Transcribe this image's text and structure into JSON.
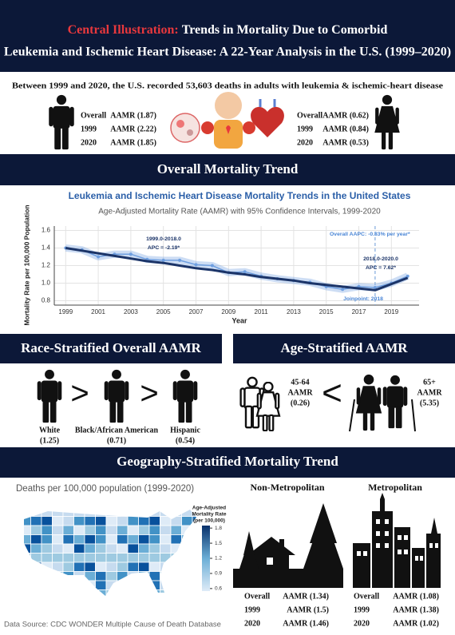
{
  "header": {
    "highlight": "Central Illustration:",
    "line1": "Trends in Mortality Due to Comorbid",
    "line2": "Leukemia and Ischemic Heart Disease: A 22-Year Analysis in the U.S. (1999–2020)"
  },
  "summary": {
    "text": "Between 1999 and 2020, the U.S. recorded 53,603 deaths in adults with leukemia & ischemic-heart disease",
    "male": [
      {
        "label": "Overall",
        "value": "AAMR (1.87)"
      },
      {
        "label": "1999",
        "value": "AAMR (2.22)"
      },
      {
        "label": "2020",
        "value": "AAMR (1.85)"
      }
    ],
    "female": [
      {
        "label": "Overall",
        "value": "AAMR (0.62)"
      },
      {
        "label": "1999",
        "value": "AAMR (0.84)"
      },
      {
        "label": "2020",
        "value": "AAMR (0.53)"
      }
    ]
  },
  "overall_heading": "Overall Mortality Trend",
  "chart_data": {
    "type": "line",
    "title": "Leukemia and Ischemic Heart Disease Mortality Trends in the United States",
    "subtitle": "Age-Adjusted Mortality Rate (AAMR) with 95% Confidence Intervals, 1999-2020",
    "x_label": "Year",
    "y_label": "Mortality Rate per 100,000 Population",
    "x": [
      1999,
      2000,
      2001,
      2002,
      2003,
      2004,
      2005,
      2006,
      2007,
      2008,
      2009,
      2010,
      2011,
      2012,
      2013,
      2014,
      2015,
      2016,
      2017,
      2018,
      2019,
      2020
    ],
    "series": [
      {
        "color": "#6f9fe0",
        "values": [
          1.4,
          1.38,
          1.3,
          1.33,
          1.33,
          1.27,
          1.26,
          1.26,
          1.21,
          1.2,
          1.12,
          1.13,
          1.08,
          1.05,
          1.03,
          1.01,
          0.96,
          0.93,
          0.96,
          0.95,
          1.0,
          1.08
        ]
      },
      {
        "color": "#1b3468",
        "values": [
          1.4,
          1.37,
          1.34,
          1.31,
          1.28,
          1.25,
          1.23,
          1.2,
          1.17,
          1.15,
          1.12,
          1.1,
          1.07,
          1.05,
          1.03,
          1.0,
          0.98,
          0.96,
          0.94,
          0.92,
          0.99,
          1.06
        ]
      }
    ],
    "xlim": [
      1998.3,
      2020.7
    ],
    "ylim": [
      0.75,
      1.65
    ],
    "xticks": [
      1999,
      2001,
      2003,
      2005,
      2007,
      2009,
      2011,
      2013,
      2015,
      2017,
      2019
    ],
    "yticks": [
      0.8,
      {
        "value": 1,
        "label": "1.0"
      },
      1.2,
      1.4,
      1.6
    ],
    "grid": true,
    "vlines": [
      2018
    ],
    "annotations": [
      "1999.0-2018.0",
      "APC = -2.19*",
      "Overall AAPC: -0.83% per year*",
      "2018.0-2020.0",
      "APC = 7.62*",
      "Joinpoint: 2018"
    ]
  },
  "race": {
    "heading": "Race-Stratified Overall AAMR",
    "comparator": ">",
    "groups": [
      {
        "name": "White",
        "value": "(1.25)"
      },
      {
        "name": "Black/African American",
        "value": "(0.71)"
      },
      {
        "name": "Hispanic",
        "value": "(0.54)"
      }
    ]
  },
  "age": {
    "heading": "Age-Stratified AAMR",
    "comparator": "<",
    "groups": [
      {
        "name": "45-64",
        "metric": "AAMR",
        "value": "(0.26)"
      },
      {
        "name": "65+",
        "metric": "AAMR",
        "value": "(5.35)"
      }
    ]
  },
  "geography": {
    "heading": "Geography-Stratified Mortality Trend",
    "map_title": "Deaths per 100,000 population (1999-2020)",
    "colorbar": {
      "title": [
        "Age-Adjusted",
        "Mortality Rate",
        "(per 100,000)"
      ],
      "lim": [
        0.55,
        1.85
      ],
      "ticks": [
        0.6,
        0.9,
        1.2,
        1.5,
        1.8
      ]
    },
    "non_metro": {
      "title": "Non-Metropolitan",
      "rows": [
        {
          "label": "Overall",
          "value": "AAMR (1.34)"
        },
        {
          "label": "1999",
          "value": "AAMR (1.5)"
        },
        {
          "label": "2020",
          "value": "AAMR (1.46)"
        }
      ]
    },
    "metro": {
      "title": "Metropolitan",
      "rows": [
        {
          "label": "Overall",
          "value": "AAMR (1.08)"
        },
        {
          "label": "1999",
          "value": "AAMR (1.38)"
        },
        {
          "label": "2020",
          "value": "AAMR (1.02)"
        }
      ]
    }
  },
  "footer": "Data Source: CDC WONDER Multiple Cause of Death Database"
}
